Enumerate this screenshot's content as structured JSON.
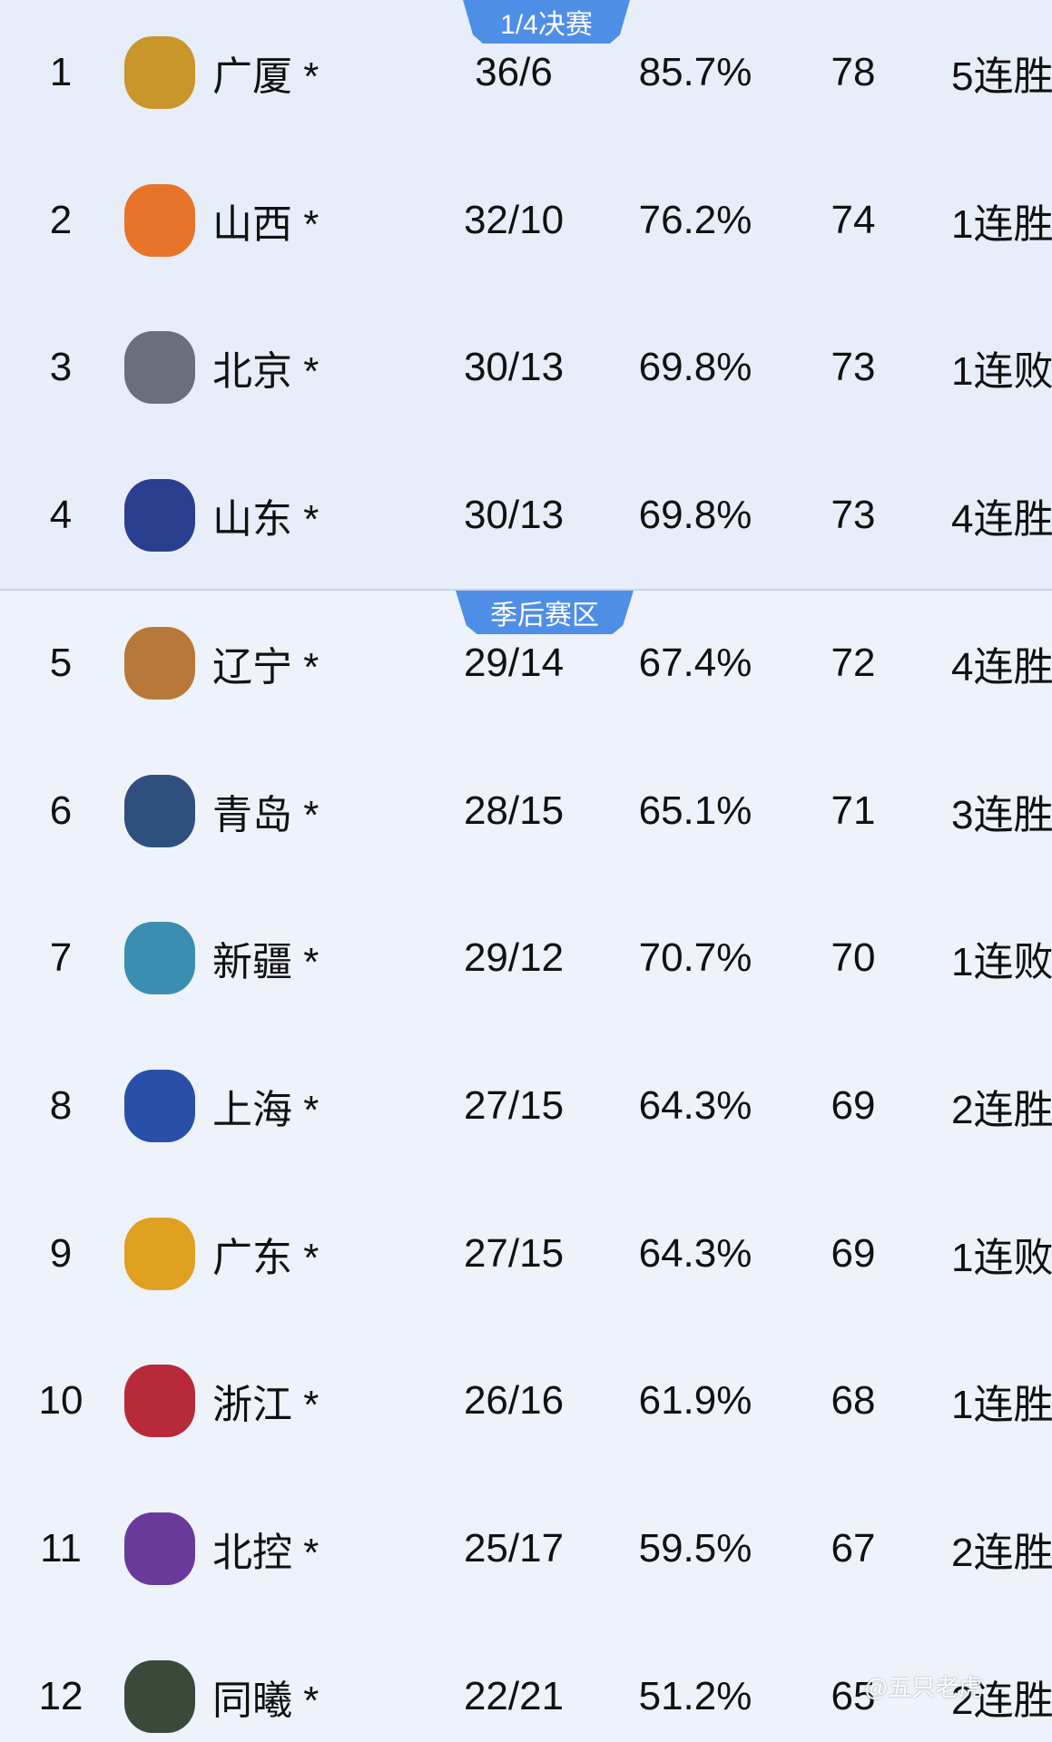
{
  "badges": {
    "quarterfinal": "1/4决赛",
    "playoff": "季后赛区"
  },
  "rows": [
    {
      "rank": "1",
      "team": "广厦 *",
      "record": "36/6",
      "pct": "85.7%",
      "points": "78",
      "streak": "5连胜",
      "logo_color": "#c8962a"
    },
    {
      "rank": "2",
      "team": "山西 *",
      "record": "32/10",
      "pct": "76.2%",
      "points": "74",
      "streak": "1连胜",
      "logo_color": "#e8742a"
    },
    {
      "rank": "3",
      "team": "北京 *",
      "record": "30/13",
      "pct": "69.8%",
      "points": "73",
      "streak": "1连败",
      "logo_color": "#6a6f7d"
    },
    {
      "rank": "4",
      "team": "山东 *",
      "record": "30/13",
      "pct": "69.8%",
      "points": "73",
      "streak": "4连胜",
      "logo_color": "#2a3f8f"
    },
    {
      "rank": "5",
      "team": "辽宁 *",
      "record": "29/14",
      "pct": "67.4%",
      "points": "72",
      "streak": "4连胜",
      "logo_color": "#b8783a"
    },
    {
      "rank": "6",
      "team": "青岛 *",
      "record": "28/15",
      "pct": "65.1%",
      "points": "71",
      "streak": "3连胜",
      "logo_color": "#2f4f7f"
    },
    {
      "rank": "7",
      "team": "新疆 *",
      "record": "29/12",
      "pct": "70.7%",
      "points": "70",
      "streak": "1连败",
      "logo_color": "#3a8fb0"
    },
    {
      "rank": "8",
      "team": "上海 *",
      "record": "27/15",
      "pct": "64.3%",
      "points": "69",
      "streak": "2连胜",
      "logo_color": "#2a4fa8"
    },
    {
      "rank": "9",
      "team": "广东 *",
      "record": "27/15",
      "pct": "64.3%",
      "points": "69",
      "streak": "1连败",
      "logo_color": "#e0a020"
    },
    {
      "rank": "10",
      "team": "浙江 *",
      "record": "26/16",
      "pct": "61.9%",
      "points": "68",
      "streak": "1连胜",
      "logo_color": "#b82a3a"
    },
    {
      "rank": "11",
      "team": "北控 *",
      "record": "25/17",
      "pct": "59.5%",
      "points": "67",
      "streak": "2连胜",
      "logo_color": "#6a3a9a"
    },
    {
      "rank": "12",
      "team": "同曦 *",
      "record": "22/21",
      "pct": "51.2%",
      "points": "65",
      "streak": "2连胜",
      "logo_color": "#3a4a3a"
    }
  ],
  "watermark": "@五只老虎"
}
